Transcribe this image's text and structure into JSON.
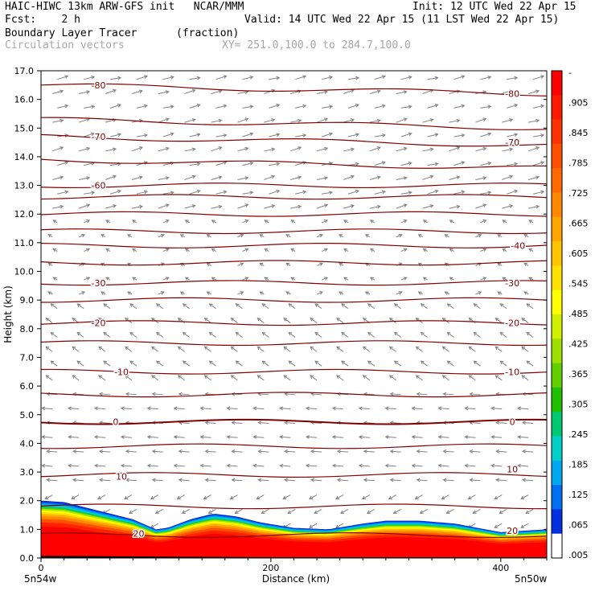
{
  "header": {
    "line1_left": "HAIC-HIWC 13km ARW-GFS init   NCAR/MMM",
    "line1_right": "Init: 12 UTC Wed 22 Apr 15",
    "line2_left": "Fcst:    2 h",
    "line2_right": "Valid: 14 UTC Wed 22 Apr 15 (11 LST Wed 22 Apr 15)",
    "field_name": "Boundary Layer Tracer",
    "field_units": "(fraction)",
    "vectors_label": "Circulation vectors",
    "xy_label": "XY= 251.0,100.0 to 284.7,100.0"
  },
  "colors": {
    "isotherm": "#800000",
    "vector": "#808080",
    "terrain": "#000000"
  },
  "chart_data": {
    "type": "cross-section",
    "xlabel": "Distance (km)",
    "ylabel": "Height (km)",
    "xlim": [
      0,
      440
    ],
    "ylim": [
      0,
      17
    ],
    "x_ticks": [
      0,
      200,
      400
    ],
    "y_ticks": [
      "0.0",
      "1.0",
      "2.0",
      "3.0",
      "4.0",
      "5.0",
      "6.0",
      "7.0",
      "8.0",
      "9.0",
      "10.0",
      "11.0",
      "12.0",
      "13.0",
      "14.0",
      "15.0",
      "16.0",
      "17.0"
    ],
    "x_end_labels": {
      "left": "5n54w",
      "right": "5n50w"
    },
    "colorbar": {
      "labels": [
        "-",
        ".905",
        ".845",
        ".785",
        ".725",
        ".665",
        ".605",
        ".545",
        ".485",
        ".425",
        ".365",
        ".305",
        ".245",
        ".185",
        ".125",
        ".065",
        ".005"
      ],
      "colors": [
        "#ff0000",
        "#ff1a00",
        "#ff3300",
        "#ff5000",
        "#ff6a00",
        "#ff8800",
        "#ffa500",
        "#ffc400",
        "#ffe000",
        "#ffff00",
        "#d0f000",
        "#a0e000",
        "#60d000",
        "#20c000",
        "#00c870",
        "#00d0c8",
        "#00a8f0",
        "#0070f0",
        "#0030e0",
        "#ffffff"
      ]
    },
    "isotherm_labels": [
      {
        "text": "-80",
        "x": 50,
        "y": 16.5
      },
      {
        "text": "-80",
        "x": 410,
        "y": 16.2
      },
      {
        "text": "-70",
        "x": 50,
        "y": 14.7
      },
      {
        "text": "-70",
        "x": 410,
        "y": 14.5
      },
      {
        "text": "-60",
        "x": 50,
        "y": 13.0
      },
      {
        "text": "-40",
        "x": 415,
        "y": 10.9
      },
      {
        "text": "-30",
        "x": 50,
        "y": 9.6
      },
      {
        "text": "-30",
        "x": 410,
        "y": 9.6
      },
      {
        "text": "-20",
        "x": 50,
        "y": 8.2
      },
      {
        "text": "-20",
        "x": 410,
        "y": 8.2
      },
      {
        "text": "-10",
        "x": 70,
        "y": 6.5
      },
      {
        "text": "-10",
        "x": 410,
        "y": 6.5
      },
      {
        "text": "0",
        "x": 65,
        "y": 4.75
      },
      {
        "text": "0",
        "x": 410,
        "y": 4.75
      },
      {
        "text": "10",
        "x": 70,
        "y": 2.85
      },
      {
        "text": "10",
        "x": 410,
        "y": 3.1
      },
      {
        "text": "20",
        "x": 85,
        "y": 0.85
      },
      {
        "text": "20",
        "x": 410,
        "y": 0.95
      }
    ],
    "isotherm_levels_km": [
      16.5,
      15.3,
      14.7,
      13.9,
      13.0,
      12.6,
      12.0,
      11.4,
      10.9,
      10.3,
      9.6,
      9.0,
      8.2,
      7.5,
      6.5,
      5.7,
      4.75,
      3.9,
      2.9,
      1.8,
      0.8
    ],
    "tracer_top_km": [
      [
        0,
        2.0
      ],
      [
        20,
        1.95
      ],
      [
        40,
        1.75
      ],
      [
        60,
        1.55
      ],
      [
        80,
        1.35
      ],
      [
        100,
        1.0
      ],
      [
        110,
        1.05
      ],
      [
        130,
        1.35
      ],
      [
        150,
        1.55
      ],
      [
        170,
        1.45
      ],
      [
        190,
        1.25
      ],
      [
        220,
        1.05
      ],
      [
        250,
        1.0
      ],
      [
        280,
        1.2
      ],
      [
        300,
        1.3
      ],
      [
        330,
        1.3
      ],
      [
        360,
        1.2
      ],
      [
        380,
        1.05
      ],
      [
        400,
        0.9
      ],
      [
        420,
        0.95
      ],
      [
        440,
        1.0
      ]
    ],
    "terrain_km": [
      [
        0,
        0.05
      ],
      [
        100,
        0.02
      ],
      [
        200,
        0.0
      ],
      [
        300,
        0.0
      ],
      [
        440,
        0.0
      ]
    ]
  }
}
